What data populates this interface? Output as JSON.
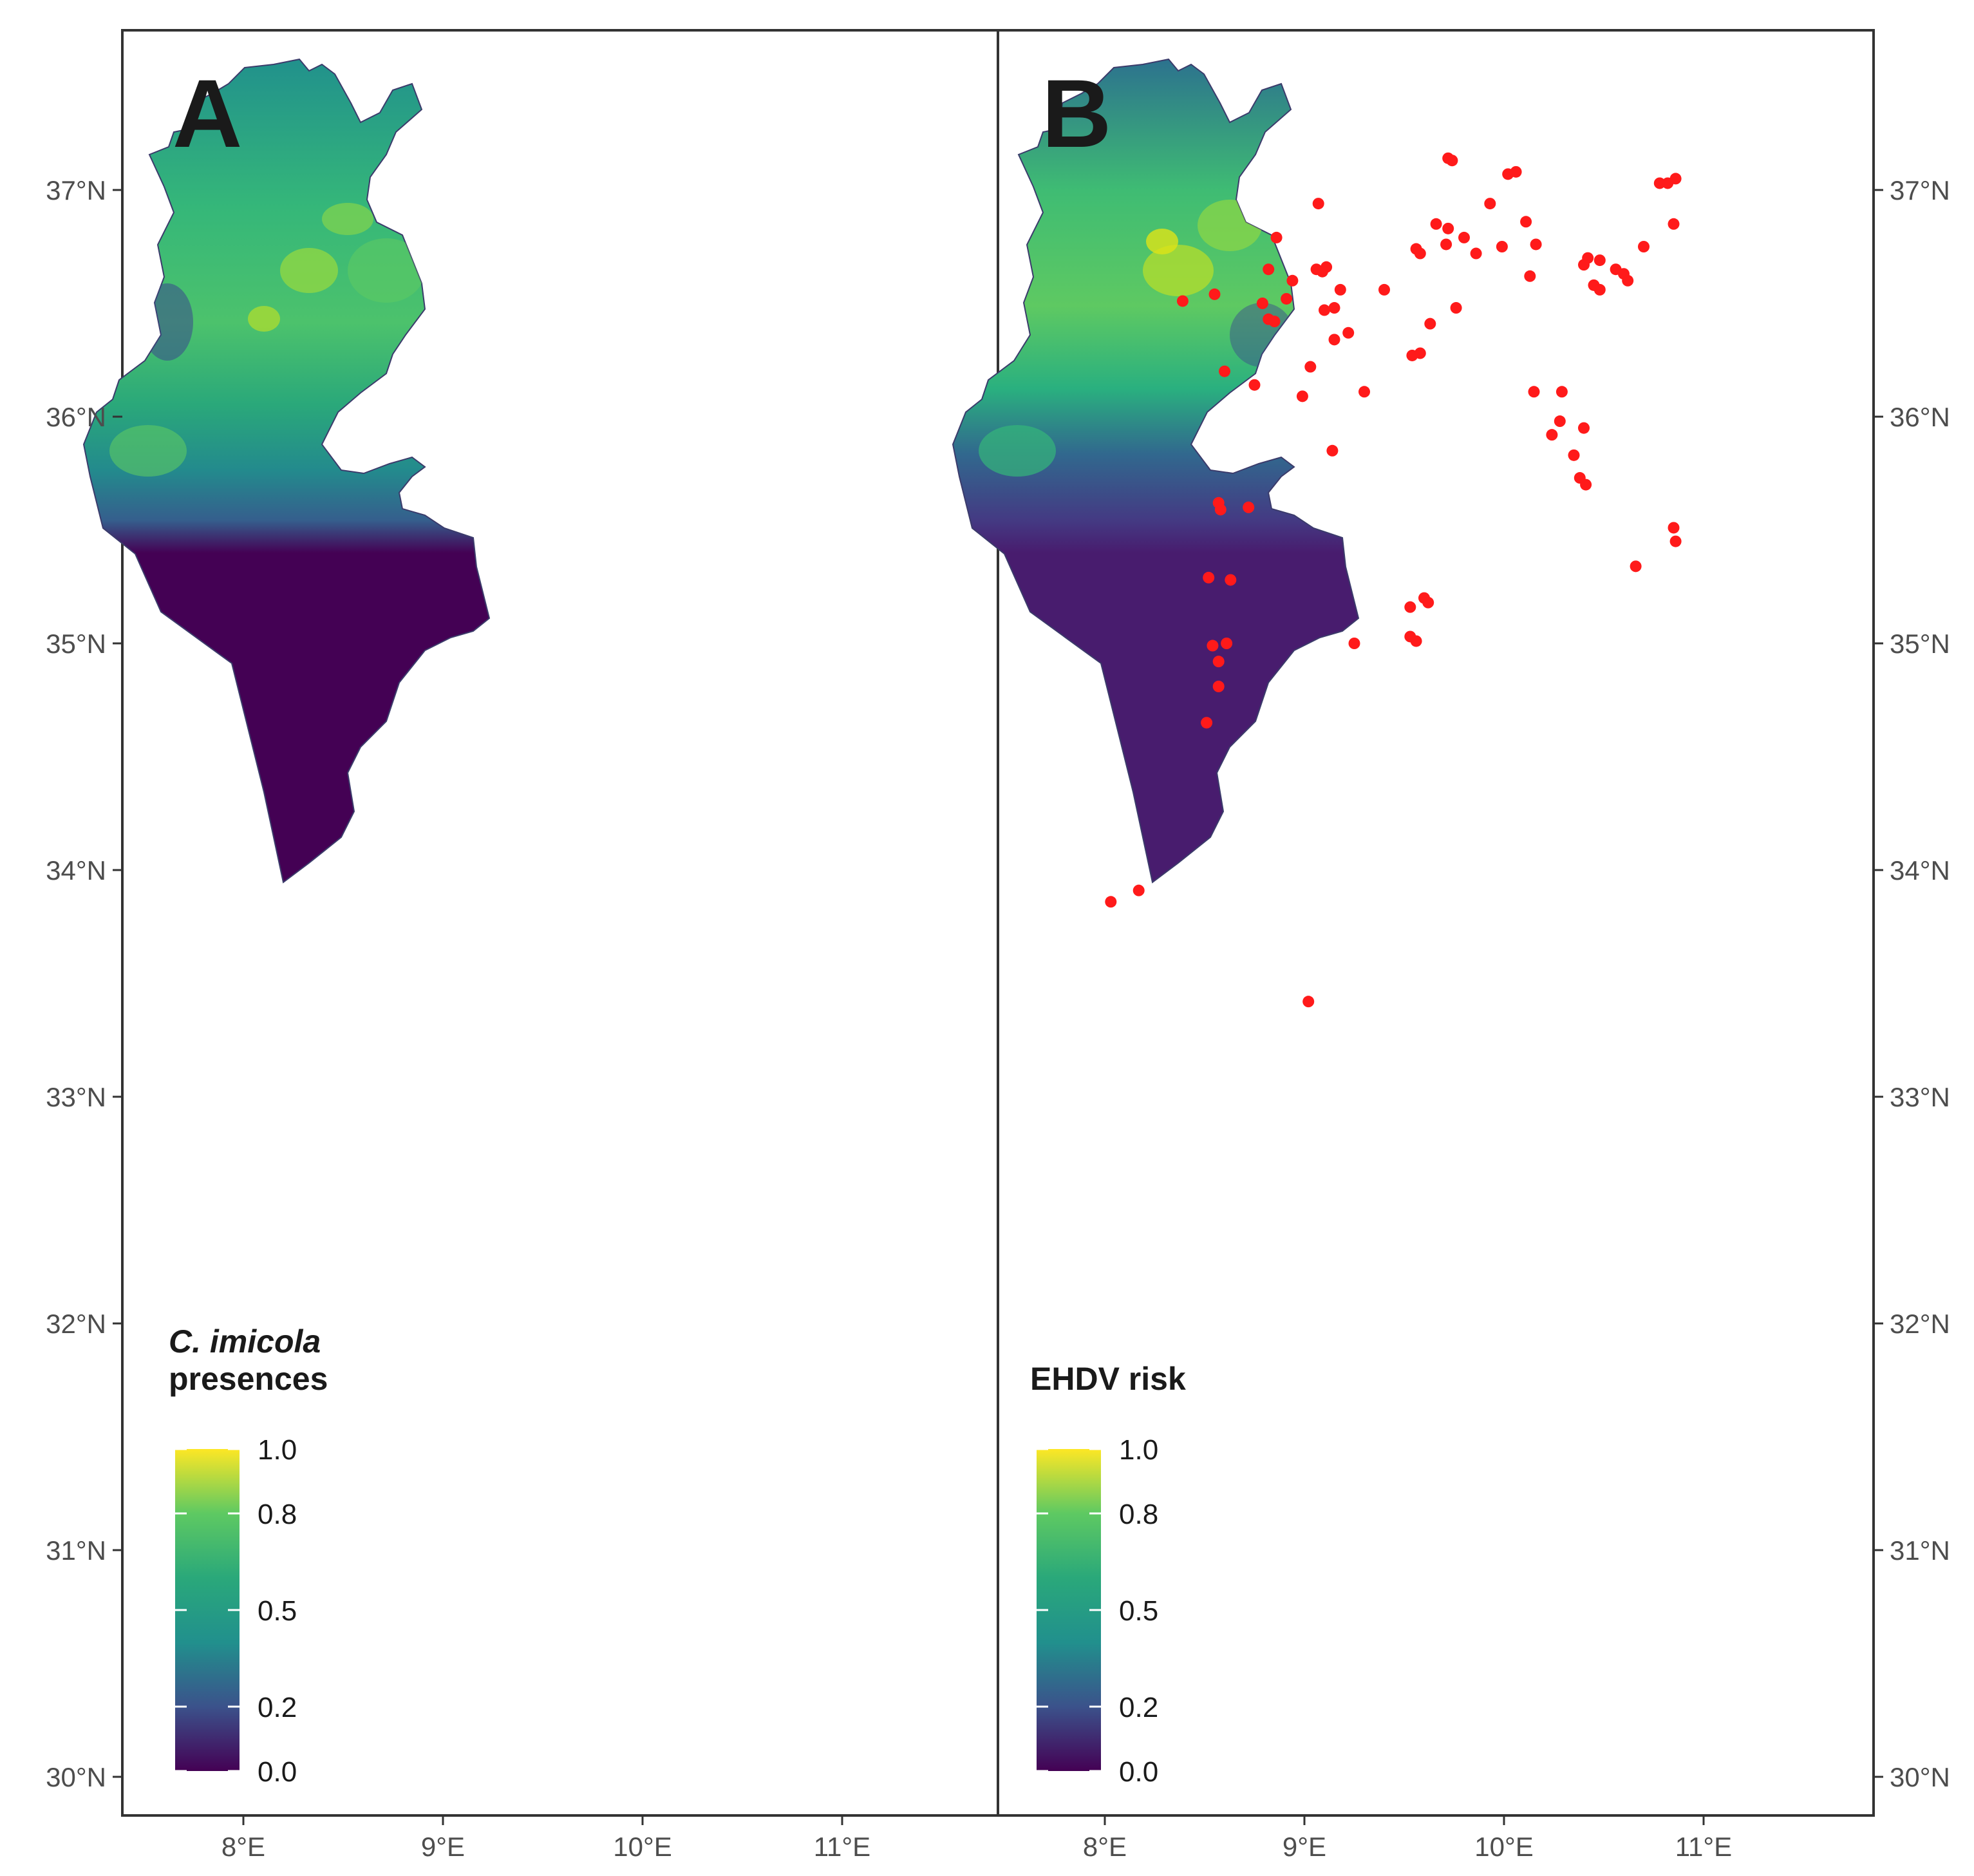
{
  "panels": [
    {
      "letter": "A",
      "legend": {
        "title_italic": "C. imicola",
        "title_rest": "presences"
      },
      "points": []
    },
    {
      "letter": "B",
      "legend": {
        "title_italic": "",
        "title_rest": "EHDV risk"
      },
      "points": [
        [
          9.72,
          37.14
        ],
        [
          9.74,
          37.13
        ],
        [
          10.02,
          37.07
        ],
        [
          10.06,
          37.08
        ],
        [
          10.86,
          37.05
        ],
        [
          10.82,
          37.03
        ],
        [
          10.78,
          37.03
        ],
        [
          9.07,
          36.94
        ],
        [
          9.93,
          36.94
        ],
        [
          10.11,
          36.86
        ],
        [
          9.66,
          36.85
        ],
        [
          9.72,
          36.83
        ],
        [
          9.8,
          36.79
        ],
        [
          8.86,
          36.79
        ],
        [
          9.71,
          36.76
        ],
        [
          10.16,
          36.76
        ],
        [
          9.99,
          36.75
        ],
        [
          9.56,
          36.74
        ],
        [
          9.58,
          36.72
        ],
        [
          9.86,
          36.72
        ],
        [
          10.7,
          36.75
        ],
        [
          10.85,
          36.85
        ],
        [
          10.42,
          36.7
        ],
        [
          10.4,
          36.67
        ],
        [
          10.48,
          36.69
        ],
        [
          10.56,
          36.65
        ],
        [
          10.6,
          36.63
        ],
        [
          10.62,
          36.6
        ],
        [
          10.45,
          36.58
        ],
        [
          10.48,
          36.56
        ],
        [
          10.13,
          36.62
        ],
        [
          9.09,
          36.64
        ],
        [
          9.06,
          36.65
        ],
        [
          9.11,
          36.66
        ],
        [
          8.94,
          36.6
        ],
        [
          8.82,
          36.65
        ],
        [
          9.18,
          36.56
        ],
        [
          9.4,
          36.56
        ],
        [
          8.91,
          36.52
        ],
        [
          8.55,
          36.54
        ],
        [
          8.39,
          36.51
        ],
        [
          8.79,
          36.5
        ],
        [
          9.1,
          36.47
        ],
        [
          9.15,
          36.48
        ],
        [
          9.76,
          36.48
        ],
        [
          8.82,
          36.43
        ],
        [
          8.85,
          36.42
        ],
        [
          9.63,
          36.41
        ],
        [
          9.22,
          36.37
        ],
        [
          9.15,
          36.34
        ],
        [
          9.58,
          36.28
        ],
        [
          9.54,
          36.27
        ],
        [
          9.03,
          36.22
        ],
        [
          8.6,
          36.2
        ],
        [
          8.75,
          36.14
        ],
        [
          8.99,
          36.09
        ],
        [
          9.3,
          36.11
        ],
        [
          10.15,
          36.11
        ],
        [
          10.29,
          36.11
        ],
        [
          10.28,
          35.98
        ],
        [
          10.4,
          35.95
        ],
        [
          10.24,
          35.92
        ],
        [
          9.14,
          35.85
        ],
        [
          10.35,
          35.83
        ],
        [
          10.38,
          35.73
        ],
        [
          10.41,
          35.7
        ],
        [
          8.57,
          35.62
        ],
        [
          8.58,
          35.59
        ],
        [
          8.72,
          35.6
        ],
        [
          10.85,
          35.51
        ],
        [
          10.86,
          35.45
        ],
        [
          10.66,
          35.34
        ],
        [
          8.52,
          35.29
        ],
        [
          8.63,
          35.28
        ],
        [
          9.6,
          35.2
        ],
        [
          9.62,
          35.18
        ],
        [
          9.53,
          35.16
        ],
        [
          9.25,
          35.0
        ],
        [
          9.53,
          35.03
        ],
        [
          9.56,
          35.01
        ],
        [
          8.54,
          34.99
        ],
        [
          8.61,
          35.0
        ],
        [
          8.57,
          34.92
        ],
        [
          8.57,
          34.81
        ],
        [
          8.51,
          34.65
        ],
        [
          8.17,
          33.91
        ],
        [
          8.03,
          33.86
        ],
        [
          9.02,
          33.42
        ]
      ]
    }
  ],
  "legend_ticks": [
    "1.0",
    "0.8",
    "0.5",
    "0.2",
    "0.0"
  ],
  "x_ticks": [
    "8°E",
    "9°E",
    "10°E",
    "11°E"
  ],
  "y_ticks": [
    "37°N",
    "36°N",
    "35°N",
    "34°N",
    "33°N",
    "32°N",
    "31°N",
    "30°N"
  ],
  "colors": {
    "viridis_low": "#440154",
    "viridis_mid": "#21908d",
    "viridis_high": "#fde725",
    "points": "#ff1a1a"
  }
}
